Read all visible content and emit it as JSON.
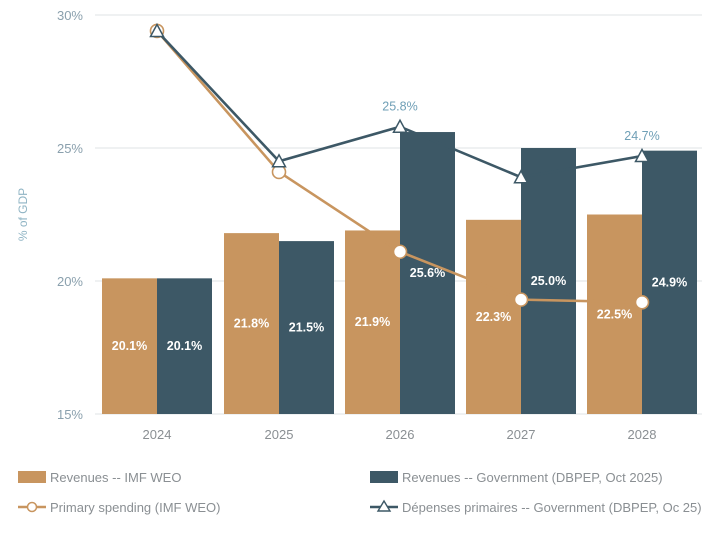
{
  "chart_data": {
    "type": "bar",
    "ylabel": "% of GDP",
    "ylim": [
      15,
      30
    ],
    "yticks": [
      "15%",
      "20%",
      "25%",
      "30%"
    ],
    "categories": [
      "2024",
      "2025",
      "2026",
      "2027",
      "2028"
    ],
    "series": [
      {
        "name": "Revenues  -- IMF WEO",
        "type": "bar",
        "color": "#c8955f",
        "values": [
          20.1,
          21.8,
          21.9,
          22.3,
          22.5
        ],
        "labels": [
          "20.1%",
          "21.8%",
          "21.9%",
          "22.3%",
          "22.5%"
        ]
      },
      {
        "name": "Revenues -- Government (DBPEP, Oct 2025)",
        "type": "bar",
        "color": "#3d5866",
        "values": [
          20.1,
          21.5,
          25.6,
          25.0,
          24.9
        ],
        "labels": [
          "20.1%",
          "21.5%",
          "25.6%",
          "25.0%",
          "24.9%"
        ]
      },
      {
        "name": "Primary spending (IMF WEO)",
        "type": "line",
        "marker": "circle",
        "color": "#c8955f",
        "values": [
          29.4,
          24.1,
          21.1,
          19.3,
          19.2
        ]
      },
      {
        "name": "Dépenses primaires -- Government (DBPEP, Oc 25)",
        "type": "line",
        "marker": "triangle",
        "color": "#3d5866",
        "values": [
          29.4,
          24.5,
          25.8,
          23.9,
          24.7
        ],
        "point_labels": [
          "",
          "",
          "25.8%",
          "",
          "24.7%"
        ]
      }
    ],
    "grid": "horizontal",
    "legend_position": "bottom"
  }
}
